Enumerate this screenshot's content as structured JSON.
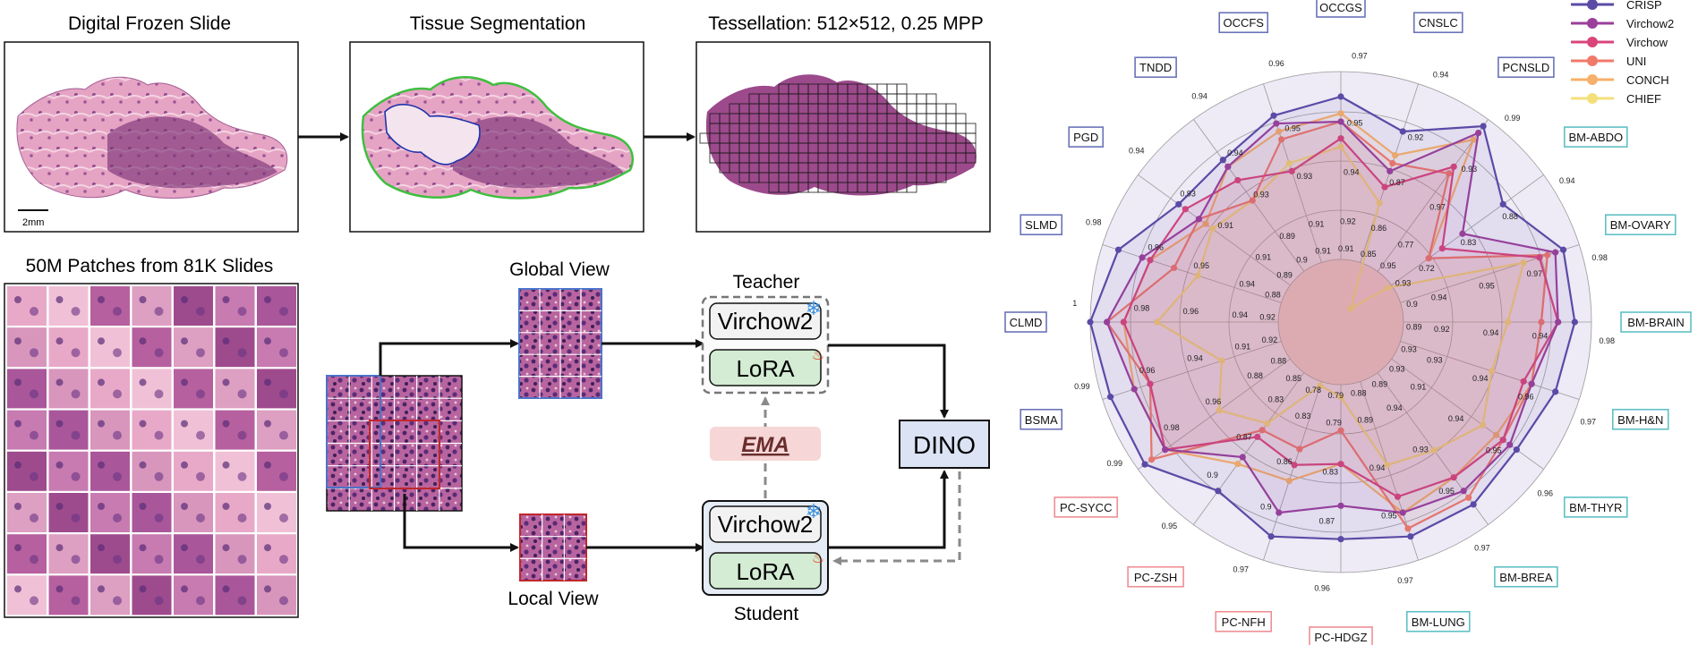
{
  "pipeline": {
    "panel1_title": "Digital Frozen Slide",
    "panel2_title": "Tissue Segmentation",
    "panel3_title": "Tessellation: 512×512, 0.25 MPP",
    "scale_bar": "2mm",
    "patches_title": "50M Patches from 81K Slides",
    "global_view": "Global View",
    "local_view": "Local View",
    "teacher": "Teacher",
    "student": "Student",
    "teacher_model": "Virchow2",
    "teacher_adapter": "LoRA",
    "student_model": "Virchow2",
    "student_adapter": "LoRA",
    "ema": "EMA",
    "dino": "DINO",
    "colors": {
      "tissue": "#8a3f7e",
      "tissue_light": "#d7a6c6",
      "segmentation_outline": "#3fbf3f",
      "background_outline": "#2233aa",
      "global_box": "#4a73c9",
      "local_box": "#c0272d",
      "adapter_fill": "#d3ecd3",
      "ema_fill": "#f6d6d6",
      "dino_fill": "#dbe3f4",
      "student_fill": "#e6ecf6"
    },
    "icons": [
      "snowflake-icon",
      "flame-icon"
    ]
  },
  "chart_data": {
    "type": "radar",
    "series": [
      {
        "name": "CRISP",
        "color": "#5b4aa6"
      },
      {
        "name": "Virchow2",
        "color": "#9b3f9b"
      },
      {
        "name": "Virchow",
        "color": "#d9457a"
      },
      {
        "name": "UNI",
        "color": "#f07a6a"
      },
      {
        "name": "CONCH",
        "color": "#f6b06a"
      },
      {
        "name": "CHIEF",
        "color": "#f3e07a"
      }
    ],
    "categories": [
      {
        "name": "OCCGS",
        "group": "blue"
      },
      {
        "name": "CNSLC",
        "group": "blue"
      },
      {
        "name": "PCNSLD",
        "group": "blue"
      },
      {
        "name": "BM-ABDO",
        "group": "teal"
      },
      {
        "name": "BM-OVARY",
        "group": "teal"
      },
      {
        "name": "BM-BRAIN",
        "group": "teal"
      },
      {
        "name": "BM-H&N",
        "group": "teal"
      },
      {
        "name": "BM-THYR",
        "group": "teal"
      },
      {
        "name": "BM-BREA",
        "group": "teal"
      },
      {
        "name": "BM-LUNG",
        "group": "teal"
      },
      {
        "name": "PC-HDGZ",
        "group": "pink"
      },
      {
        "name": "PC-NFH",
        "group": "pink"
      },
      {
        "name": "PC-ZSH",
        "group": "pink"
      },
      {
        "name": "PC-SYCC",
        "group": "pink"
      },
      {
        "name": "BSMA",
        "group": "blue"
      },
      {
        "name": "CLMD",
        "group": "blue"
      },
      {
        "name": "SLMD",
        "group": "blue"
      },
      {
        "name": "PGD",
        "group": "blue"
      },
      {
        "name": "TNDD",
        "group": "blue"
      },
      {
        "name": "OCCFS",
        "group": "blue"
      }
    ],
    "group_colors": {
      "blue": "#6a73b8",
      "teal": "#5fc0c4",
      "pink": "#ee8f95"
    },
    "outer_labels": [
      "0.97",
      "0.94",
      "0.99",
      "0.94",
      "0.98",
      "0.98",
      "0.97",
      "0.96",
      "0.97",
      "0.97",
      "0.96",
      "0.97",
      "0.95",
      "0.99",
      "0.99",
      "1",
      "0.98",
      "0.94",
      "0.94",
      "0.96"
    ],
    "mid_labels": [
      "0.95",
      "0.92",
      "0.93",
      "0.88",
      "0.97",
      "0.94",
      "0.96",
      "0.95",
      "0.95",
      "0.95",
      "0.87",
      "0.9",
      "0.9",
      "0.98",
      "0.96",
      "0.98",
      "0.96",
      "0.93",
      "0.94",
      "0.95"
    ],
    "mid2_labels": [
      "0.94",
      "0.87",
      "0.97",
      "0.83",
      "0.95",
      "0.94",
      "0.94",
      "0.94",
      "0.93",
      "0.94",
      "0.83",
      "0.86",
      "0.87",
      "0.96",
      "0.94",
      "0.96",
      "0.95",
      "0.91",
      "0.93",
      "0.93"
    ],
    "inner_labels": [
      "0.92",
      "0.86",
      "0.77",
      "0.72",
      "0.94",
      "0.92",
      "0.93",
      "0.91",
      "0.94",
      "0.89",
      "0.79",
      "0.83",
      "0.83",
      "0.88",
      "0.91",
      "0.94",
      "0.94",
      "0.91",
      "0.89",
      "0.91"
    ],
    "core_labels": [
      "0.91",
      "0.85",
      "0.95",
      "0.93",
      "0.9",
      "0.89",
      "0.93",
      "0.93",
      "0.89",
      "0.88",
      "0.79",
      "0.78",
      "0.85",
      "0.88",
      "0.92",
      "0.92",
      "0.88",
      "0.89",
      "0.9",
      "0.91"
    ],
    "values": {
      "CRISP": [
        0.97,
        0.94,
        0.99,
        0.94,
        0.98,
        0.98,
        0.97,
        0.96,
        0.97,
        0.97,
        0.96,
        0.97,
        0.95,
        0.99,
        0.99,
        1.0,
        0.98,
        0.94,
        0.94,
        0.96
      ],
      "Virchow2": [
        0.94,
        0.89,
        0.98,
        0.88,
        0.97,
        0.96,
        0.94,
        0.95,
        0.95,
        0.94,
        0.92,
        0.94,
        0.9,
        0.96,
        0.96,
        0.98,
        0.95,
        0.91,
        0.93,
        0.95
      ],
      "Virchow": [
        0.92,
        0.87,
        0.93,
        0.85,
        0.95,
        0.96,
        0.93,
        0.94,
        0.93,
        0.92,
        0.87,
        0.88,
        0.87,
        0.96,
        0.94,
        0.96,
        0.94,
        0.93,
        0.91,
        0.89
      ],
      "UNI": [
        0.94,
        0.9,
        0.92,
        0.83,
        0.96,
        0.94,
        0.94,
        0.94,
        0.96,
        0.96,
        0.83,
        0.86,
        0.86,
        0.98,
        0.94,
        0.98,
        0.91,
        0.91,
        0.88,
        0.93
      ],
      "CONCH": [
        0.95,
        0.91,
        0.97,
        0.83,
        0.96,
        0.94,
        0.94,
        0.93,
        0.93,
        0.94,
        0.87,
        0.9,
        0.91,
        0.96,
        0.96,
        0.96,
        0.94,
        0.9,
        0.93,
        0.94
      ],
      "CHIEF": [
        0.91,
        0.85,
        0.72,
        0.77,
        0.93,
        0.9,
        0.89,
        0.91,
        0.89,
        0.88,
        0.79,
        0.78,
        0.85,
        0.88,
        0.85,
        0.92,
        0.88,
        0.89,
        0.88,
        0.9
      ]
    },
    "rmin": 0.7,
    "rmax": 1.0,
    "grid": true,
    "legend_position": "top-right"
  }
}
